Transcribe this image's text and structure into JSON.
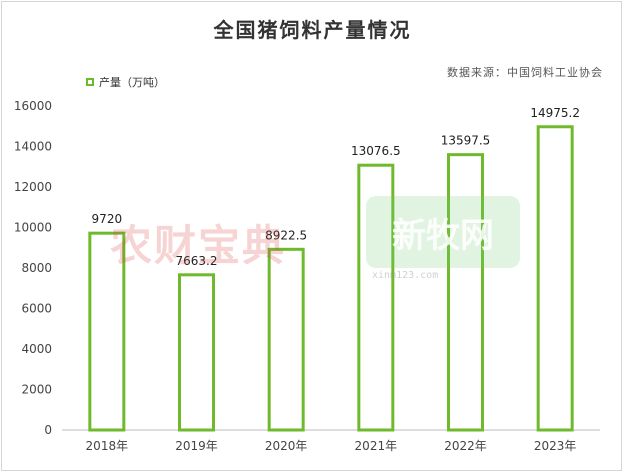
{
  "chart_data": {
    "type": "bar",
    "title": "全国猪饲料产量情况",
    "source": "数据来源：中国饲料工业协会",
    "legend": "产量（万吨）",
    "categories": [
      "2018年",
      "2019年",
      "2020年",
      "2021年",
      "2022年",
      "2023年"
    ],
    "series": [
      {
        "name": "产量（万吨）",
        "values": [
          9720,
          7663.2,
          8922.5,
          13076.5,
          13597.5,
          14975.2
        ]
      }
    ],
    "data_labels": [
      "9720",
      "7663.2",
      "8922.5",
      "13076.5",
      "13597.5",
      "14975.2"
    ],
    "yticks": [
      0,
      2000,
      4000,
      6000,
      8000,
      10000,
      12000,
      14000,
      16000
    ],
    "ylim": [
      0,
      16000
    ],
    "bar_color": "#6fba2c",
    "legend_position": "top-left",
    "grid": false
  },
  "watermarks": {
    "left": "农财宝典",
    "right": "新牧网",
    "right_sub": "xinm123.com"
  }
}
